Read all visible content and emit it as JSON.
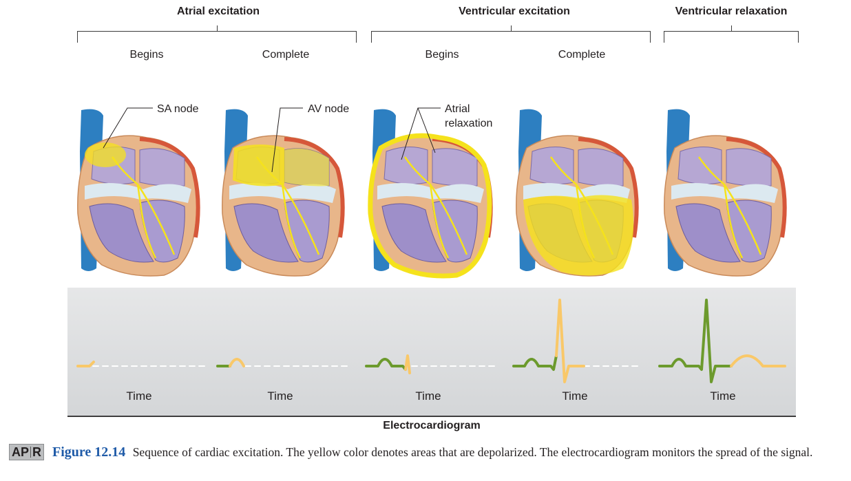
{
  "headers": {
    "atrial_excitation": "Atrial excitation",
    "ventricular_excitation": "Ventricular excitation",
    "ventricular_relaxation": "Ventricular relaxation"
  },
  "subheaders": {
    "atrial_begins": "Begins",
    "atrial_complete": "Complete",
    "ventricular_begins": "Begins",
    "ventricular_complete": "Complete"
  },
  "callouts": {
    "sa_node": "SA node",
    "av_node": "AV node",
    "atrial_relaxation_line1": "Atrial",
    "atrial_relaxation_line2": "relaxation"
  },
  "ecg": {
    "time_labels": [
      "Time",
      "Time",
      "Time",
      "Time",
      "Time"
    ],
    "title": "Electrocardiogram",
    "colors": {
      "active": "#f9c869",
      "past": "#6c9a2d",
      "baseline": "#ffffff"
    }
  },
  "caption": {
    "badge_left": "AP",
    "badge_right": "R",
    "figure_number": "Figure 12.14",
    "text": "Sequence of cardiac excitation. The yellow color denotes areas that are depolarized. The electrocardiogram monitors the spread of the signal."
  },
  "colors": {
    "vein": "#2d7fc1",
    "myocardium": "#e8b68a",
    "atrium": "#b6a7d3",
    "ventricle": "#9e8fc9",
    "valve": "#dce9f0",
    "depolarized": "#f5e21c",
    "epicardium": "#d6573a"
  }
}
